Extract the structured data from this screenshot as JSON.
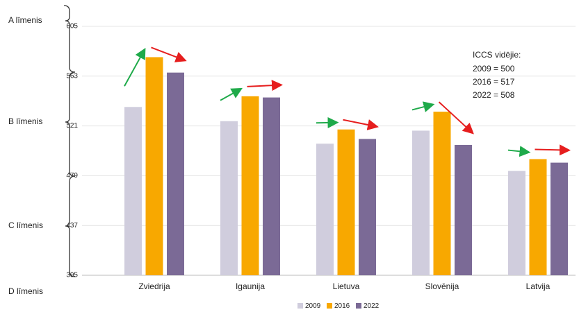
{
  "chart_data": {
    "type": "bar",
    "categories": [
      "Zviedrija",
      "Igaunija",
      "Lietuva",
      "Slovēnija",
      "Latvija"
    ],
    "series": [
      {
        "name": "2009",
        "color": "#d0cddd",
        "values": [
          537,
          525,
          506,
          517,
          483
        ]
      },
      {
        "name": "2016",
        "color": "#f8a800",
        "values": [
          579,
          546,
          518,
          533,
          493
        ]
      },
      {
        "name": "2022",
        "color": "#7b6a96",
        "values": [
          566,
          545,
          510,
          505,
          490
        ]
      }
    ],
    "ylim": [
      395,
      605
    ],
    "yticks": [
      395,
      437,
      479,
      521,
      563,
      605
    ],
    "grid": true,
    "levels": [
      "A līmenis",
      "B līmenis",
      "C līmenis",
      "D līmenis"
    ],
    "annotation": [
      "ICCS vidējie:",
      "2009 = 500",
      "2016 = 517",
      "2022 = 508"
    ],
    "legend": "bottom"
  }
}
